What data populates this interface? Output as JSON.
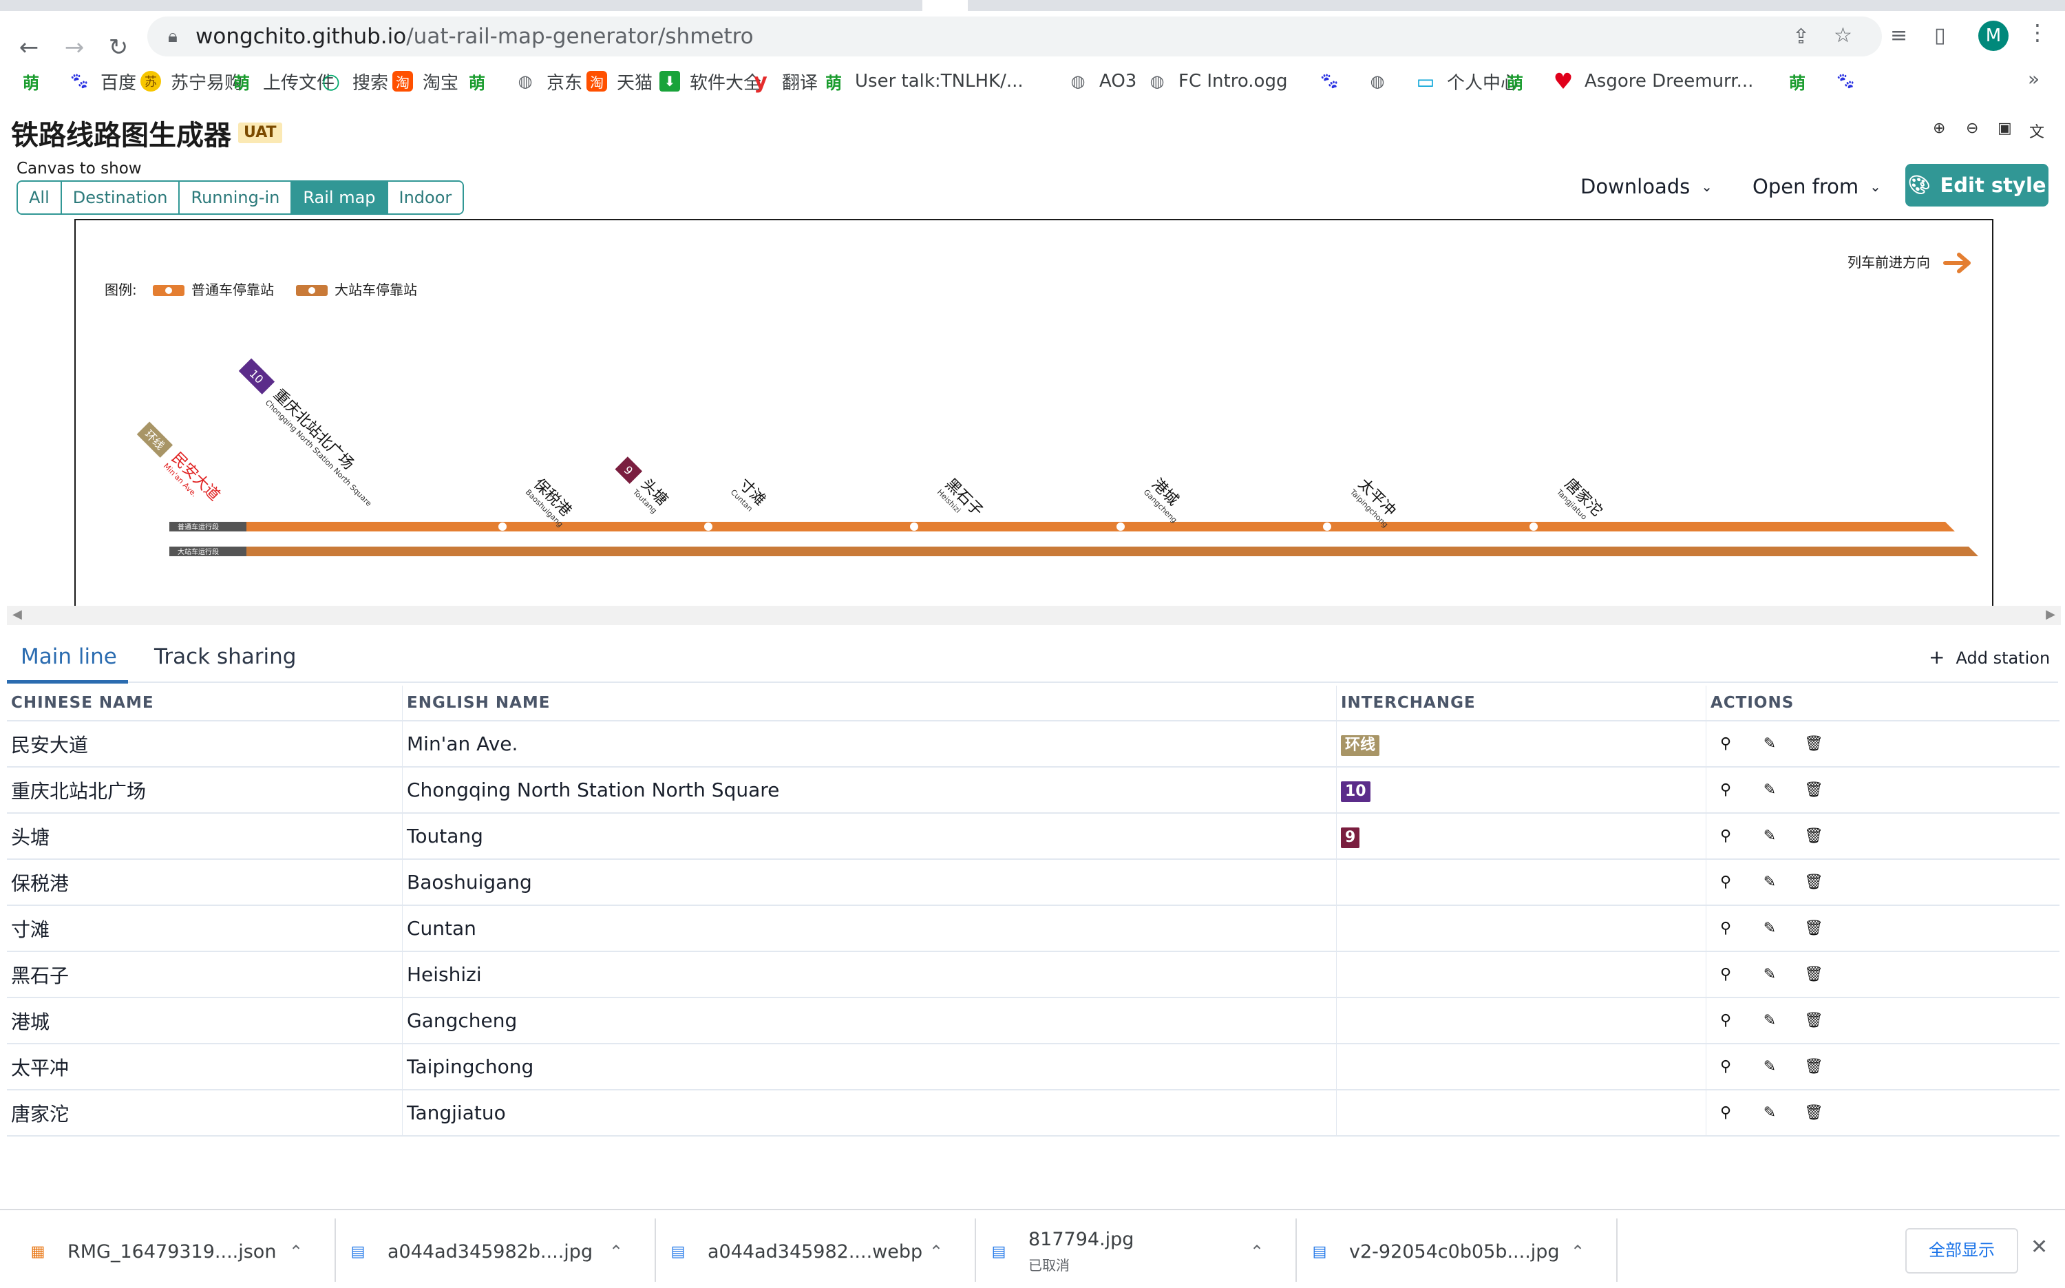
{
  "browser": {
    "url_host": "wongchito.github.io",
    "url_path": "/uat-rail-map-generator/shmetro",
    "avatar_initial": "M",
    "bookmarks": [
      {
        "icon": "meng",
        "label": ""
      },
      {
        "icon": "baidu",
        "label": "百度"
      },
      {
        "icon": "suning",
        "label": "苏宁易购"
      },
      {
        "icon": "meng",
        "label": "上传文件"
      },
      {
        "icon": "search",
        "label": "搜索"
      },
      {
        "icon": "taobao",
        "label": "淘宝"
      },
      {
        "icon": "meng",
        "label": ""
      },
      {
        "icon": "globe",
        "label": "京东"
      },
      {
        "icon": "taobao",
        "label": "天猫"
      },
      {
        "icon": "dl",
        "label": "软件大全"
      },
      {
        "icon": "youdao",
        "label": "翻译"
      },
      {
        "icon": "meng",
        "label": "User talk:TNLHK/..."
      },
      {
        "icon": "globe",
        "label": "AO3"
      },
      {
        "icon": "globe",
        "label": "FC Intro.ogg"
      },
      {
        "icon": "baidu",
        "label": ""
      },
      {
        "icon": "globe",
        "label": ""
      },
      {
        "icon": "bili",
        "label": "个人中心"
      },
      {
        "icon": "meng",
        "label": ""
      },
      {
        "icon": "heart",
        "label": "Asgore Dreemurr..."
      },
      {
        "icon": "meng",
        "label": ""
      },
      {
        "icon": "baidu",
        "label": ""
      }
    ],
    "bookmarks_more": "»"
  },
  "app": {
    "title": "铁路线路图生成器",
    "badge": "UAT",
    "canvas_label": "Canvas to show",
    "canvas_tabs": [
      "All",
      "Destination",
      "Running-in",
      "Rail map",
      "Indoor"
    ],
    "active_canvas_tab": "Rail map",
    "downloads_label": "Downloads",
    "open_from_label": "Open from",
    "edit_style_label": "Edit style"
  },
  "map": {
    "legend_prefix": "图例:",
    "legend_normal": "普通车停靠站",
    "legend_major": "大站车停靠站",
    "direction_label": "列车前进方向",
    "line_color": "#e47e31",
    "line_color_secondary": "#c97a38",
    "track_label_normal": "普通车运行段",
    "track_label_major": "大站车运行段"
  },
  "stations_panel": {
    "tabs": [
      "Main line",
      "Track sharing"
    ],
    "add_station_label": "Add station",
    "columns": [
      "CHINESE NAME",
      "ENGLISH NAME",
      "INTERCHANGE",
      "ACTIONS"
    ],
    "rows": [
      {
        "zh": "民安大道",
        "en": "Min'an Ave.",
        "interchange": "环线",
        "ichg_color": "#a89566"
      },
      {
        "zh": "重庆北站北广场",
        "en": "Chongqing North Station North Square",
        "interchange": "10",
        "ichg_color": "#5b2c8a"
      },
      {
        "zh": "头塘",
        "en": "Toutang",
        "interchange": "9",
        "ichg_color": "#7a1e3f"
      },
      {
        "zh": "保税港",
        "en": "Baoshuigang",
        "interchange": "",
        "ichg_color": ""
      },
      {
        "zh": "寸滩",
        "en": "Cuntan",
        "interchange": "",
        "ichg_color": ""
      },
      {
        "zh": "黑石子",
        "en": "Heishizi",
        "interchange": "",
        "ichg_color": ""
      },
      {
        "zh": "港城",
        "en": "Gangcheng",
        "interchange": "",
        "ichg_color": ""
      },
      {
        "zh": "太平冲",
        "en": "Taipingchong",
        "interchange": "",
        "ichg_color": ""
      },
      {
        "zh": "唐家沱",
        "en": "Tangjiatuo",
        "interchange": "",
        "ichg_color": ""
      }
    ]
  },
  "downloads_bar": {
    "items": [
      {
        "name": "RMG_16479319....json",
        "sub": ""
      },
      {
        "name": "a044ad345982b....jpg",
        "sub": ""
      },
      {
        "name": "a044ad345982....webp",
        "sub": ""
      },
      {
        "name": "817794.jpg",
        "sub": "已取消"
      },
      {
        "name": "v2-92054c0b05b....jpg",
        "sub": ""
      }
    ],
    "show_all_label": "全部显示"
  }
}
